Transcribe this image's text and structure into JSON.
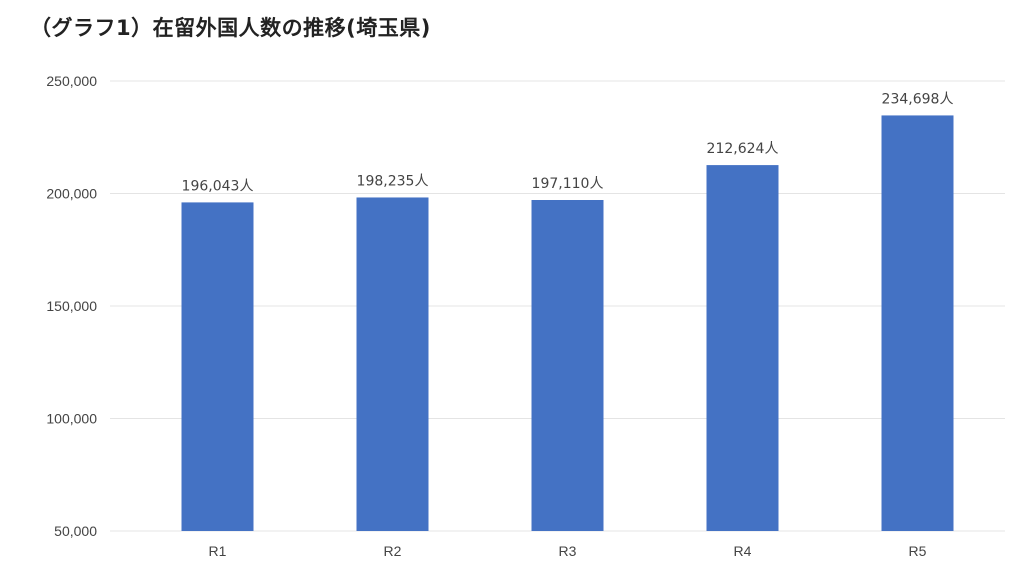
{
  "title": "（グラフ1）在留外国人数の推移(埼玉県)",
  "chart_data": {
    "type": "bar",
    "categories": [
      "R1",
      "R2",
      "R3",
      "R4",
      "R5"
    ],
    "values": [
      196043,
      198235,
      197110,
      212624,
      234698
    ],
    "data_labels": [
      "196,043人",
      "198,235人",
      "197,110人",
      "212,624人",
      "234,698人"
    ],
    "y_ticks": [
      "50,000",
      "100,000",
      "150,000",
      "200,000",
      "250,000"
    ],
    "ylim": [
      50000,
      250000
    ],
    "grid": true,
    "bar_color": "#4472c4",
    "grid_color": "#e4e4e4"
  }
}
